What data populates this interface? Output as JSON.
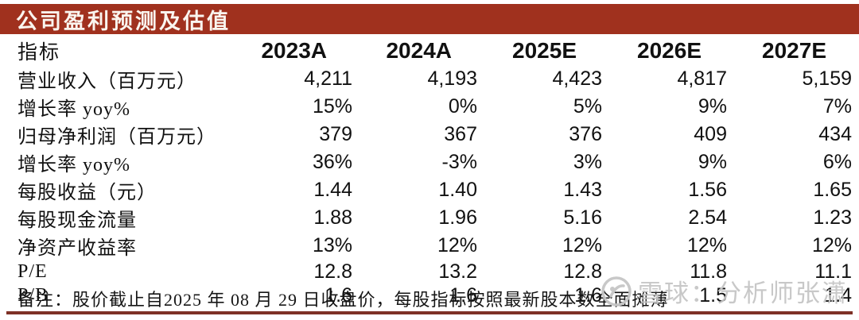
{
  "title": "公司盈利预测及估值",
  "table": {
    "header": [
      "指标",
      "2023A",
      "2024A",
      "2025E",
      "2026E",
      "2027E"
    ],
    "rows": [
      {
        "label": "营业收入（百万元）",
        "values": [
          "4,211",
          "4,193",
          "4,423",
          "4,817",
          "5,159"
        ]
      },
      {
        "label": "增长率 yoy%",
        "values": [
          "15%",
          "0%",
          "5%",
          "9%",
          "7%"
        ]
      },
      {
        "label": "归母净利润（百万元）",
        "values": [
          "379",
          "367",
          "376",
          "409",
          "434"
        ]
      },
      {
        "label": "增长率 yoy%",
        "values": [
          "36%",
          "-3%",
          "3%",
          "9%",
          "6%"
        ]
      },
      {
        "label": "每股收益（元）",
        "values": [
          "1.44",
          "1.40",
          "1.43",
          "1.56",
          "1.65"
        ]
      },
      {
        "label": "每股现金流量",
        "values": [
          "1.88",
          "1.96",
          "5.16",
          "2.54",
          "1.23"
        ]
      },
      {
        "label": "净资产收益率",
        "values": [
          "13%",
          "12%",
          "12%",
          "12%",
          "12%"
        ]
      },
      {
        "label": "P/E",
        "values": [
          "12.8",
          "13.2",
          "12.8",
          "11.8",
          "11.1"
        ]
      },
      {
        "label": "P/B",
        "values": [
          "1.6",
          "1.6",
          "1.6",
          "1.5",
          "1.4"
        ]
      }
    ]
  },
  "footnote": "备注：股价截止自2025 年 08 月 29 日收盘价，每股指标按照最新股本数全面摊薄",
  "watermark": {
    "icon": "xueqiu-snowball-icon",
    "text": "雪球：分析师张潇"
  },
  "colors": {
    "title_bar": "#a0311e",
    "title_text": "#faf5ef",
    "bottom_rule": "#7e3126",
    "body_text": "#111111",
    "watermark": "#c6c6c6"
  }
}
